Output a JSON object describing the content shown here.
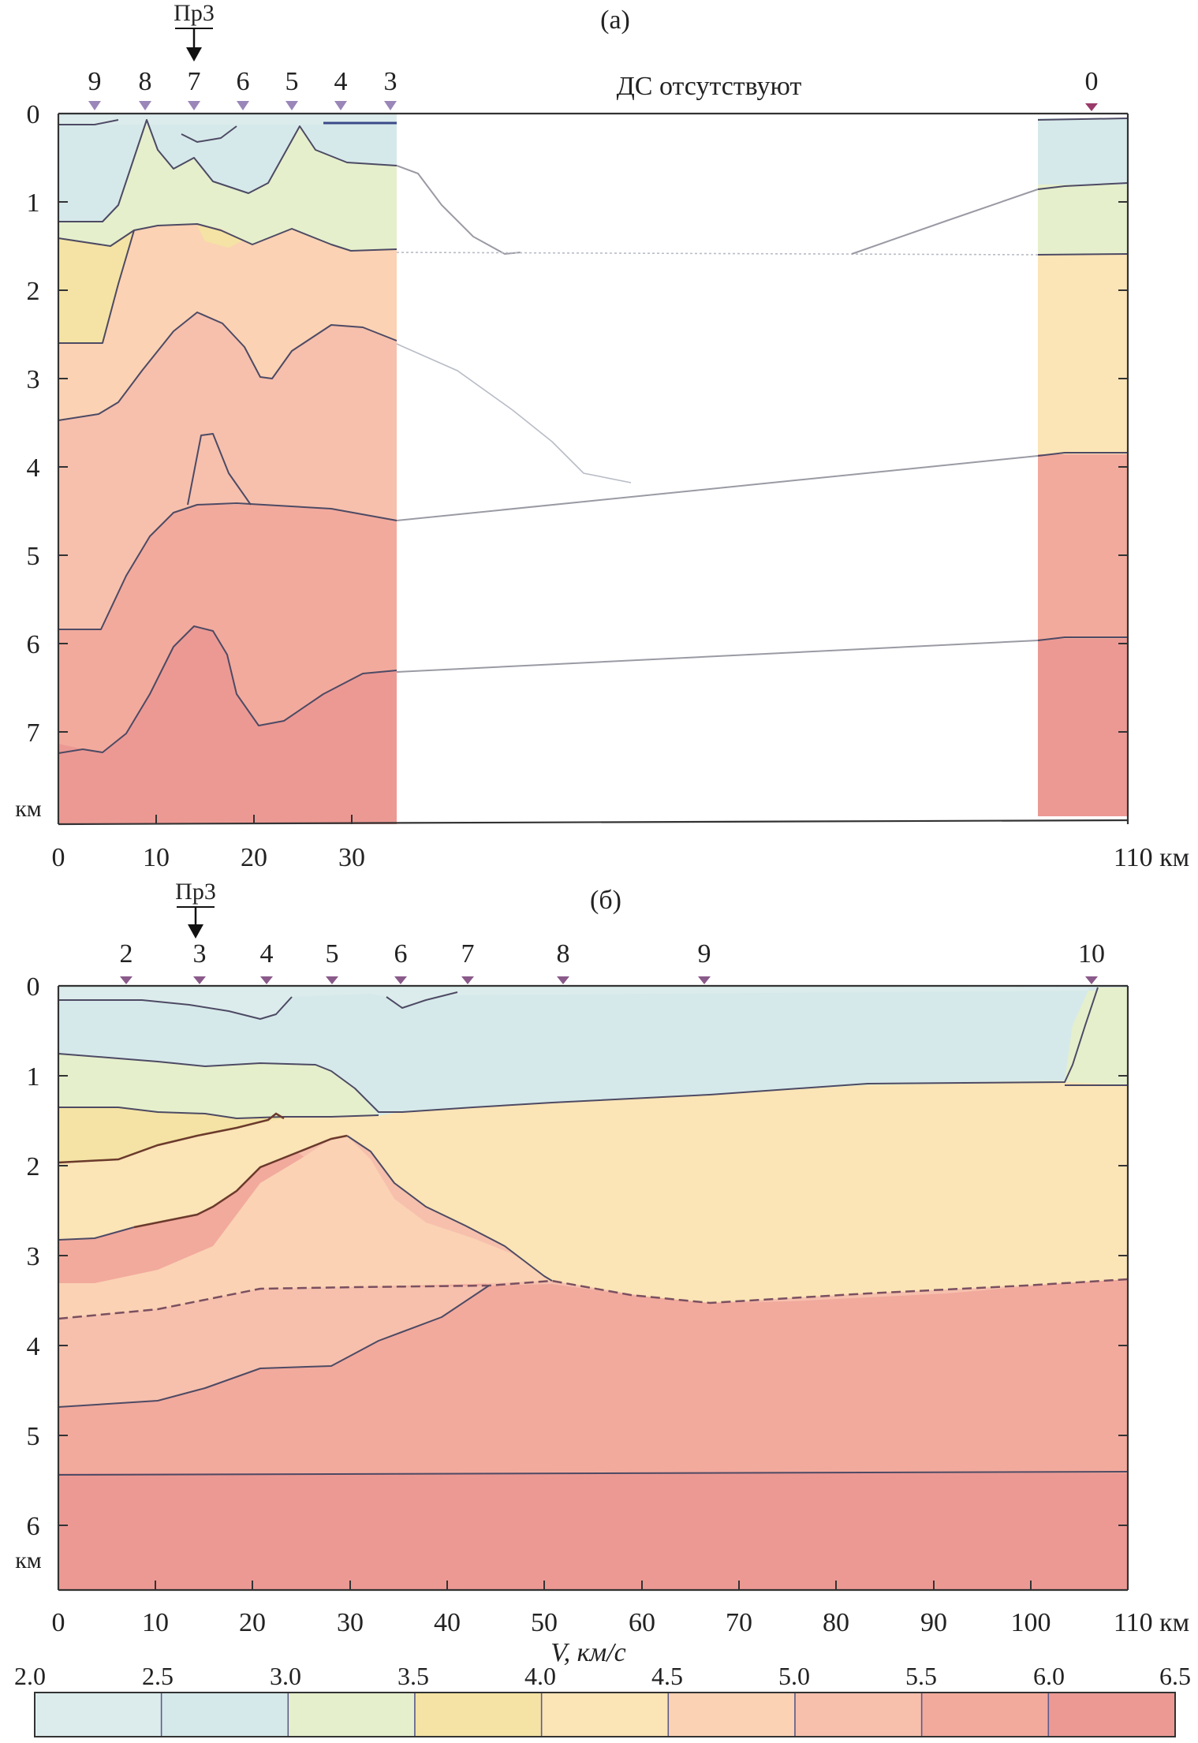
{
  "panel_a": {
    "label": "(а)",
    "profile_marker": "Пр3",
    "missing_note": "ДС отсутствуют",
    "stations": [
      "9",
      "8",
      "7",
      "6",
      "5",
      "4",
      "3",
      "0"
    ],
    "y_ticks": [
      "0",
      "1",
      "2",
      "3",
      "4",
      "5",
      "6",
      "7"
    ],
    "y_unit": "км",
    "x_ticks": [
      "0",
      "10",
      "20",
      "30"
    ],
    "x_end_label": "110 км"
  },
  "panel_b": {
    "label": "(б)",
    "profile_marker": "Пр3",
    "stations": [
      "2",
      "3",
      "4",
      "5",
      "6",
      "7",
      "8",
      "9",
      "10"
    ],
    "y_ticks": [
      "0",
      "1",
      "2",
      "3",
      "4",
      "5",
      "6"
    ],
    "y_unit": "км",
    "x_ticks": [
      "0",
      "10",
      "20",
      "30",
      "40",
      "50",
      "60",
      "70",
      "80",
      "90",
      "100"
    ],
    "x_end_label": "110 км"
  },
  "legend": {
    "title": "V, км/с",
    "values": [
      "2.0",
      "2.5",
      "3.0",
      "3.5",
      "4.0",
      "4.5",
      "5.0",
      "5.5",
      "6.0",
      "6.5"
    ],
    "colors": [
      "#dcecec",
      "#d6e9ea",
      "#e5efcc",
      "#f4e3a4",
      "#fbe4b6",
      "#fbd2b4",
      "#f6c0ad",
      "#f2aa9d",
      "#ec9994"
    ]
  },
  "colors": {
    "v20_25": "#dcecec",
    "v25_30": "#d6e9ea",
    "v30_35": "#e5efcc",
    "v35_40": "#f4e3a4",
    "v40_45": "#fbe4b6",
    "v45_50": "#fbd2b4",
    "v50_55": "#f6c0ad",
    "v55_60": "#f2aa9d",
    "v60_65": "#ec9994",
    "station_marker": "#9a86b8"
  }
}
